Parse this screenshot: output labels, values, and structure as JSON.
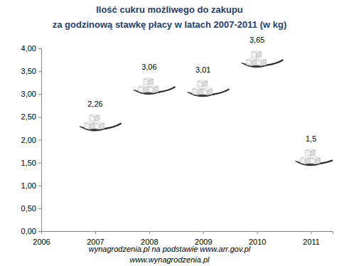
{
  "chart_data": {
    "type": "scatter",
    "title": [
      "Ilość cukru możliwego do zakupu",
      "za godzinową stawkę płacy w latach 2007-2011 (w kg)"
    ],
    "annotations": [
      "wynagrodzenia.pl na podstawie www.arr.gov.pl",
      "www.wynagrodzenia.pl"
    ],
    "x": [
      2007,
      2008,
      2009,
      2010,
      2011
    ],
    "values": [
      2.26,
      3.06,
      3.01,
      3.65,
      1.5
    ],
    "value_labels": [
      "2,26",
      "3,06",
      "3,01",
      "3,65",
      "1,5"
    ],
    "data_labels": true,
    "marker": "cube",
    "color": "#1f3f6e",
    "xlim": [
      2006,
      2011.4
    ],
    "xticks": [
      2006,
      2007,
      2008,
      2009,
      2010,
      2011
    ],
    "ylim": [
      0,
      4
    ],
    "yticks": [
      {
        "value": 0,
        "label": "0,00"
      },
      {
        "value": 0.5,
        "label": "0,50"
      },
      {
        "value": 1,
        "label": "1,00"
      },
      {
        "value": 1.5,
        "label": "1,50"
      },
      {
        "value": 2,
        "label": "2,00"
      },
      {
        "value": 2.5,
        "label": "2,50"
      },
      {
        "value": 3,
        "label": "3,00"
      },
      {
        "value": 3.5,
        "label": "3,50"
      },
      {
        "value": 4,
        "label": "4,00"
      }
    ],
    "grid": false
  }
}
